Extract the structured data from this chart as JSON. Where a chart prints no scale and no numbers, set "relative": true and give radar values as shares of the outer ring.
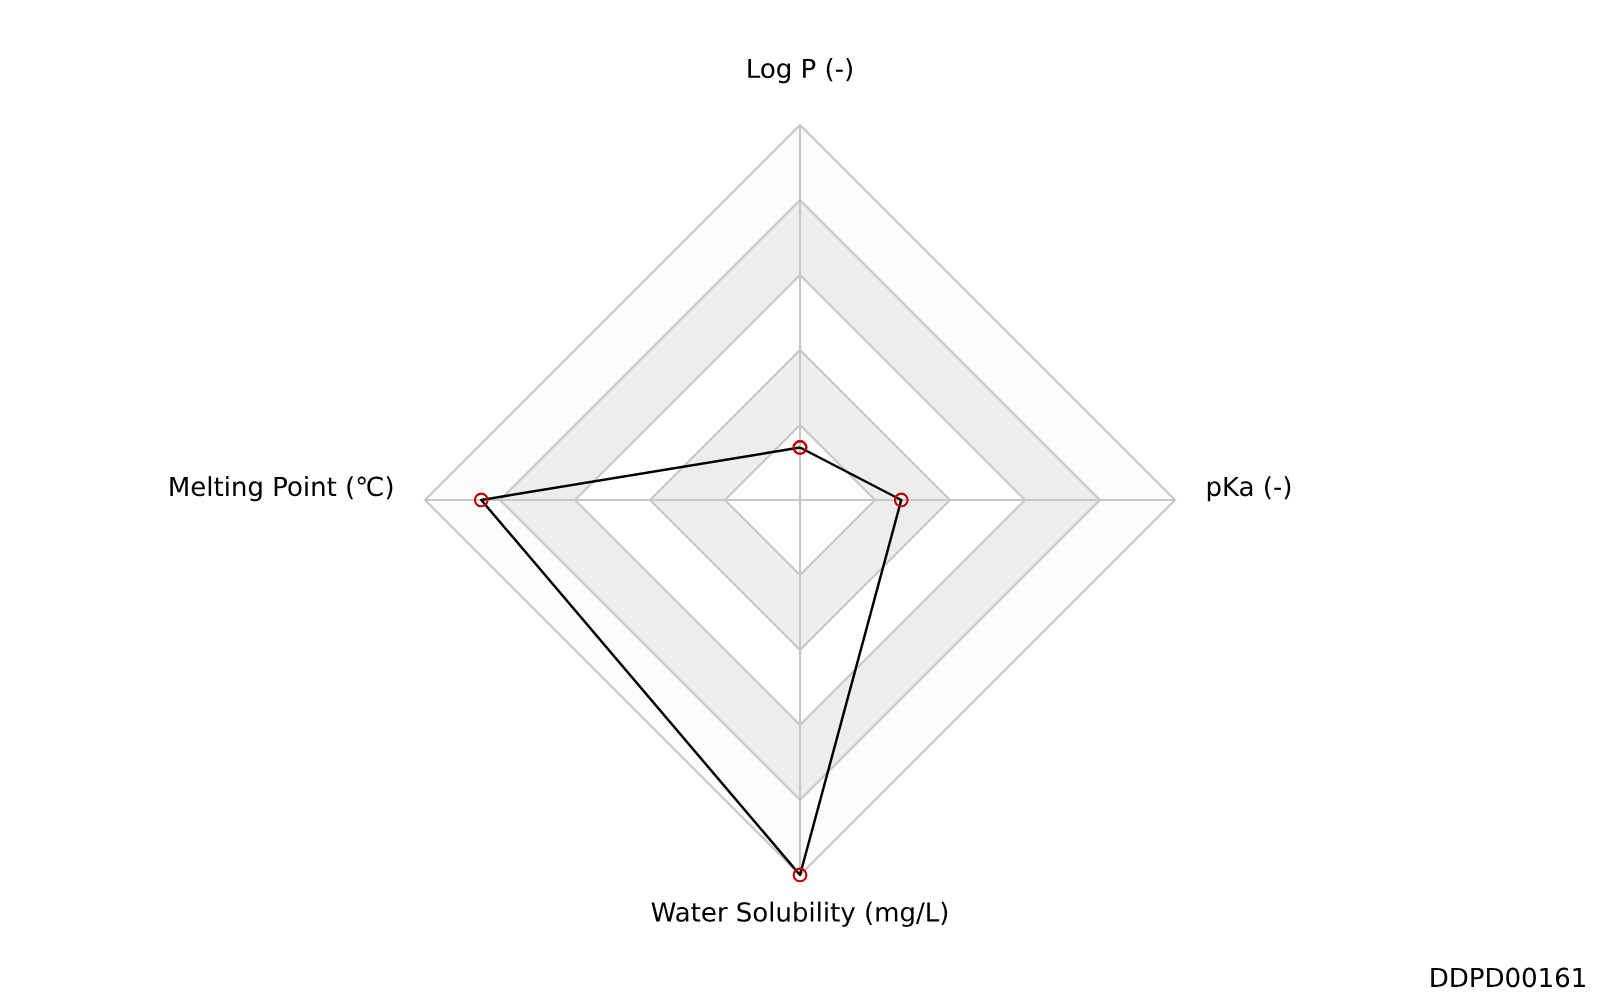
{
  "chart_data": {
    "type": "radar",
    "relative": true,
    "marker": "circle",
    "categories": [
      "Log P (-)",
      "pKa (-)",
      "Water Solubility (mg/L)",
      "Melting Point (℃)"
    ],
    "series": [
      {
        "color": "#000000",
        "values": [
          0.14,
          0.27,
          1.0,
          0.85
        ]
      }
    ],
    "annotations": [
      "DDPD00161"
    ]
  }
}
